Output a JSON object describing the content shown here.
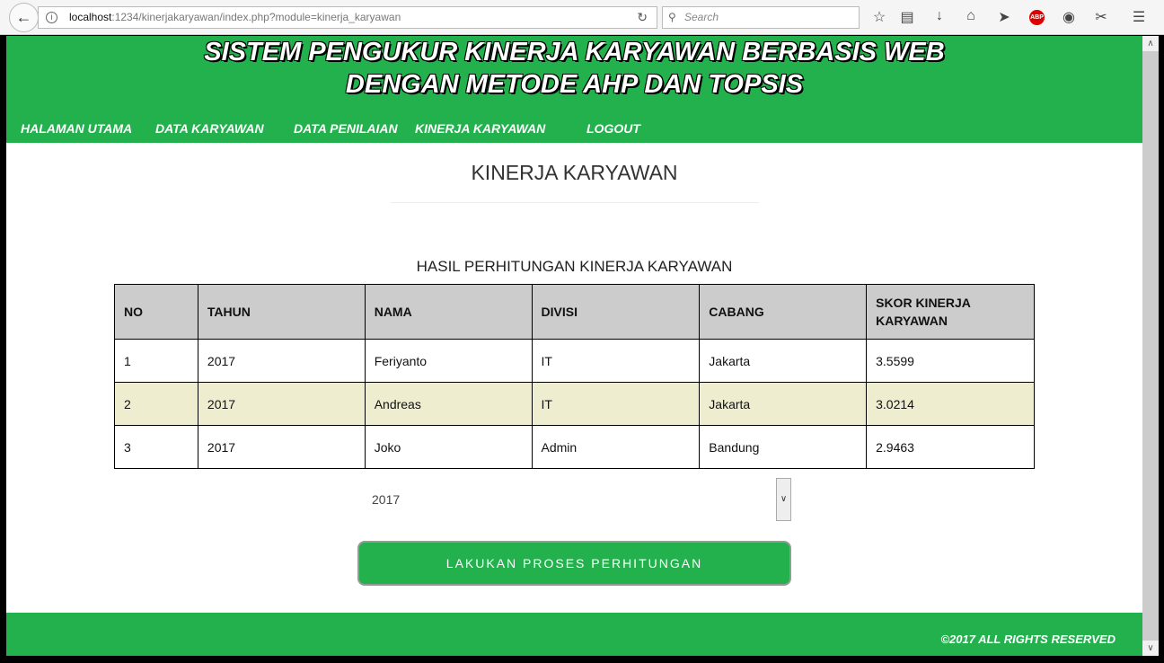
{
  "browser": {
    "url_host": "localhost",
    "url_rest": ":1234/kinerjakaryawan/index.php?module=kinerja_karyawan",
    "search_placeholder": "Search"
  },
  "header": {
    "title_line1": "SISTEM PENGUKUR KINERJA KARYAWAN BERBASIS WEB",
    "title_line2": "DENGAN METODE AHP DAN TOPSIS"
  },
  "nav": [
    "HALAMAN UTAMA",
    "DATA KARYAWAN",
    "DATA PENILAIAN",
    "KINERJA KARYAWAN",
    "LOGOUT"
  ],
  "main": {
    "page_title": "KINERJA KARYAWAN",
    "table_title": "HASIL PERHITUNGAN KINERJA KARYAWAN",
    "columns": [
      "NO",
      "TAHUN",
      "NAMA",
      "DIVISI",
      "CABANG",
      "SKOR KINERJA KARYAWAN"
    ],
    "rows": [
      [
        "1",
        "2017",
        "Feriyanto",
        "IT",
        "Jakarta",
        "3.5599"
      ],
      [
        "2",
        "2017",
        "Andreas",
        "IT",
        "Jakarta",
        "3.0214"
      ],
      [
        "3",
        "2017",
        "Joko",
        "Admin",
        "Bandung",
        "2.9463"
      ]
    ],
    "year_select": "2017",
    "process_button": "LAKUKAN PROSES PERHITUNGAN"
  },
  "footer": {
    "copyright": "©2017 ALL RIGHTS RESERVED"
  },
  "colors": {
    "brand_green": "#22b14c",
    "alt_row": "#efedd0",
    "header_row": "#cccccc"
  }
}
